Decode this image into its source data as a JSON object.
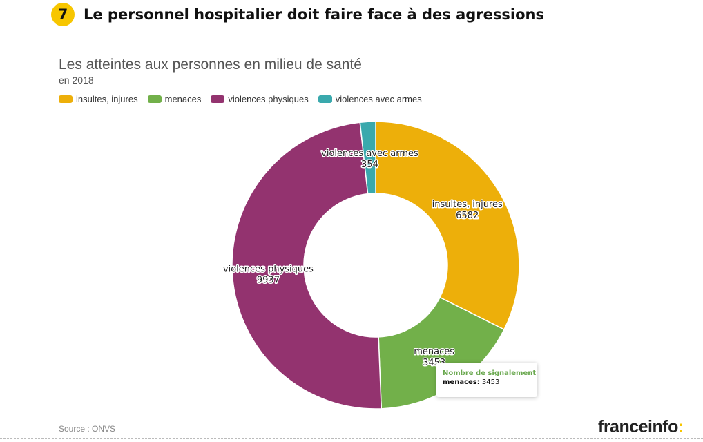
{
  "header": {
    "number": "7",
    "title": "Le personnel hospitalier doit faire face à des agressions"
  },
  "chart_data": {
    "type": "pie",
    "title": "Les atteintes aux personnes en milieu de santé",
    "subtitle": "en 2018",
    "legend_position": "top-left",
    "series": [
      {
        "name": "insultes, injures",
        "value": 6582,
        "color": "#edaf0a"
      },
      {
        "name": "menaces",
        "value": 3453,
        "color": "#72b04a"
      },
      {
        "name": "violences physiques",
        "value": 9937,
        "color": "#93336f"
      },
      {
        "name": "violences avec armes",
        "value": 354,
        "color": "#3aa9ad"
      }
    ],
    "tooltip": {
      "title": "Nombre de signalement",
      "series_name": "menaces",
      "value": "3453"
    },
    "source": "Source : ONVS"
  },
  "brand": {
    "name": "franceinfo",
    "accent": ":"
  }
}
